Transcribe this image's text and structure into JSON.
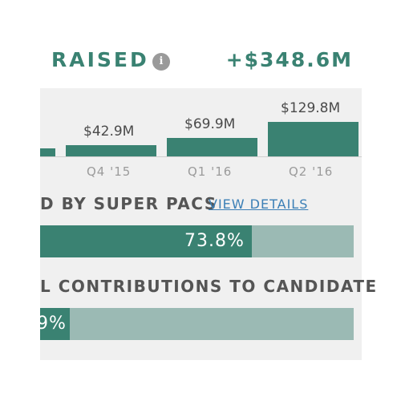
{
  "header": {
    "raised_label": "RAISED",
    "info_icon": "info-icon",
    "raised_total": "+$348.6M"
  },
  "quarters": [
    {
      "value": "",
      "label": ""
    },
    {
      "value": "$42.9M",
      "label": "Q4 '15"
    },
    {
      "value": "$69.9M",
      "label": "Q1 '16"
    },
    {
      "value": "$129.8M",
      "label": "Q2 '16"
    }
  ],
  "super_pacs": {
    "title": "D BY SUPER PACS",
    "link": "VIEW DETAILS",
    "percent_text": "73.8%",
    "percent": 73.8
  },
  "contributions": {
    "title": "L CONTRIBUTIONS TO CANDIDATE",
    "percent_text": "9%"
  },
  "colors": {
    "accent": "#3a8272",
    "track": "#9bbab4",
    "panel": "#f0f0f0",
    "link": "#3b7fb6"
  }
}
